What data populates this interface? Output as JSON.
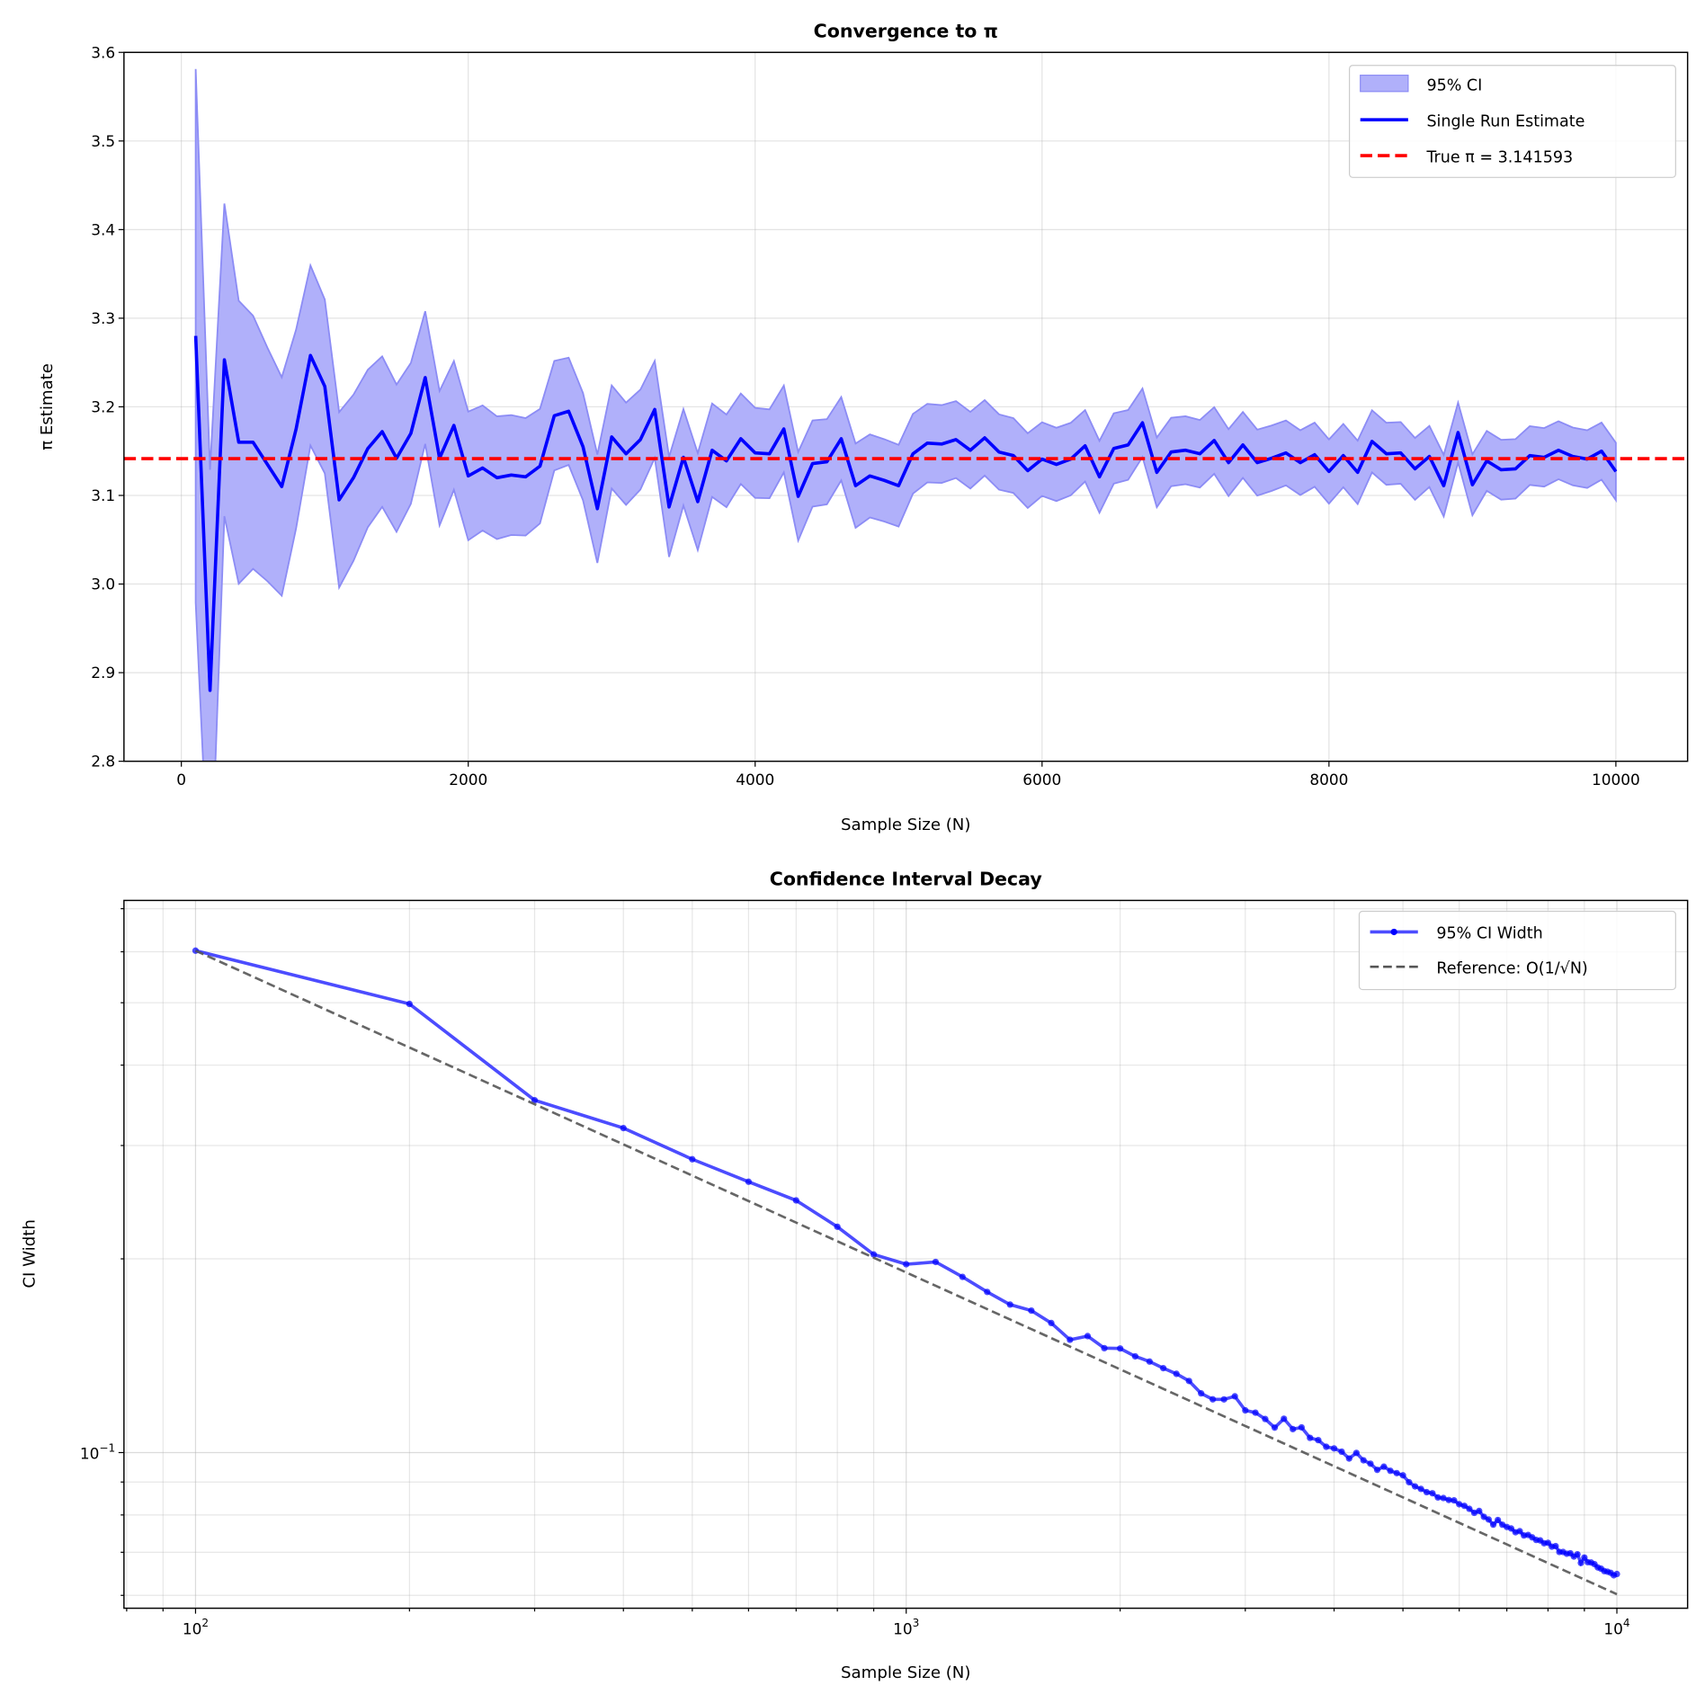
{
  "chart_data": [
    {
      "type": "line",
      "title": "Convergence to π",
      "xlabel": "Sample Size (N)",
      "ylabel": "π Estimate",
      "xlim": [
        -400,
        10500
      ],
      "ylim": [
        2.8,
        3.6
      ],
      "xticks": [
        0,
        2000,
        4000,
        6000,
        8000,
        10000
      ],
      "xtick_labels": [
        "0",
        "2000",
        "4000",
        "6000",
        "8000",
        "10000"
      ],
      "yticks": [
        2.8,
        2.9,
        3.0,
        3.1,
        3.2,
        3.3,
        3.4,
        3.5,
        3.6
      ],
      "ytick_labels": [
        "2.8",
        "2.9",
        "3.0",
        "3.1",
        "3.2",
        "3.3",
        "3.4",
        "3.5",
        "3.6"
      ],
      "grid": true,
      "legend_position": "top-right",
      "legend": [
        "95% CI",
        "Single Run Estimate",
        "True π = 3.141593"
      ],
      "true_value": 3.141593,
      "ci_z": 1.96,
      "x_start": 100,
      "x_step": 100,
      "estimates": [
        3.28,
        2.88,
        3.253,
        3.16,
        3.16,
        3.135,
        3.11,
        3.175,
        3.258,
        3.223,
        3.095,
        3.12,
        3.153,
        3.172,
        3.142,
        3.17,
        3.233,
        3.142,
        3.179,
        3.122,
        3.131,
        3.12,
        3.123,
        3.121,
        3.133,
        3.19,
        3.195,
        3.155,
        3.085,
        3.166,
        3.147,
        3.163,
        3.197,
        3.087,
        3.143,
        3.093,
        3.151,
        3.139,
        3.164,
        3.148,
        3.147,
        3.175,
        3.099,
        3.136,
        3.138,
        3.164,
        3.111,
        3.122,
        3.117,
        3.111,
        3.147,
        3.159,
        3.158,
        3.163,
        3.151,
        3.165,
        3.149,
        3.145,
        3.128,
        3.141,
        3.135,
        3.141,
        3.156,
        3.121,
        3.153,
        3.157,
        3.182,
        3.126,
        3.149,
        3.151,
        3.147,
        3.162,
        3.137,
        3.157,
        3.137,
        3.142,
        3.148,
        3.137,
        3.146,
        3.127,
        3.145,
        3.126,
        3.161,
        3.147,
        3.148,
        3.13,
        3.144,
        3.111,
        3.171,
        3.112,
        3.139,
        3.129,
        3.13,
        3.145,
        3.143,
        3.151,
        3.144,
        3.141,
        3.15,
        3.127
      ],
      "colors": {
        "estimate": "#0000ff",
        "ci_fill": "#b0b0fa",
        "ci_edge": "#8c8cf5",
        "true": "#ff0000"
      }
    },
    {
      "type": "line",
      "title": "Confidence Interval Decay",
      "xlabel": "Sample Size (N)",
      "ylabel": "CI Width",
      "xscale": "log",
      "yscale": "log",
      "xlim": [
        79.3,
        12575
      ],
      "ylim": [
        0.0573,
        0.721
      ],
      "xtick_labels": [
        {
          "base": "10",
          "exp": "2",
          "value": 100
        },
        {
          "base": "10",
          "exp": "3",
          "value": 1000
        },
        {
          "base": "10",
          "exp": "4",
          "value": 10000
        }
      ],
      "ytick_labels": [
        {
          "base": "10",
          "exp": "−1",
          "value": 0.1
        }
      ],
      "grid": true,
      "legend_position": "top-right",
      "legend": [
        "95% CI Width",
        "Reference: O(1/√N)"
      ],
      "series_note_x": "same N as chart 1",
      "colors": {
        "ci_width": "#0000ff",
        "reference": "#555555"
      }
    }
  ]
}
